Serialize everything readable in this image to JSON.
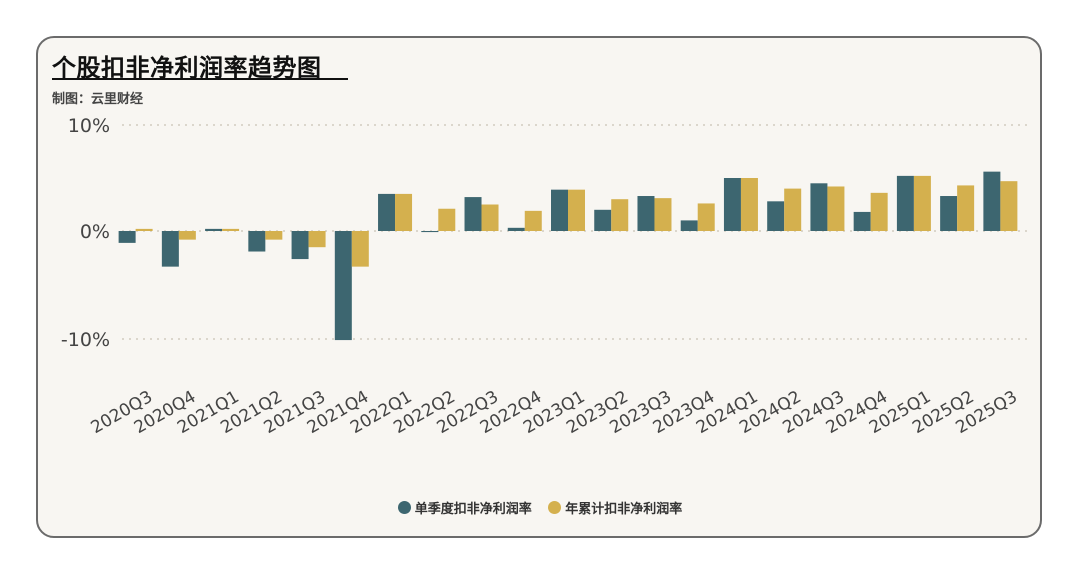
{
  "title": "个股扣非净利润率趋势图",
  "subtitle": "制图：云里财经",
  "colors": {
    "quarterly": "#3d6670",
    "annual": "#d4b04e",
    "grid": "#c9c2b6",
    "axis_text": "#444444"
  },
  "chart_data": {
    "type": "bar",
    "categories": [
      "2020Q3",
      "2020Q4",
      "2021Q1",
      "2021Q2",
      "2021Q3",
      "2021Q4",
      "2022Q1",
      "2022Q2",
      "2022Q3",
      "2022Q4",
      "2023Q1",
      "2023Q2",
      "2023Q3",
      "2023Q4",
      "2024Q1",
      "2024Q2",
      "2024Q3",
      "2024Q4",
      "2025Q1",
      "2025Q2",
      "2025Q3"
    ],
    "series": [
      {
        "name": "单季度扣非净利润率",
        "color": "#3d6670",
        "values": [
          -1.1,
          -3.3,
          0.2,
          -1.9,
          -2.6,
          -10.1,
          3.5,
          -0.1,
          3.2,
          0.3,
          3.9,
          2.0,
          3.3,
          1.0,
          5.0,
          2.8,
          4.5,
          1.8,
          5.2,
          3.3,
          5.6
        ]
      },
      {
        "name": "年累计扣非净利润率",
        "color": "#d4b04e",
        "values": [
          0.2,
          -0.8,
          0.2,
          -0.8,
          -1.5,
          -3.3,
          3.5,
          2.1,
          2.5,
          1.9,
          3.9,
          3.0,
          3.1,
          2.6,
          5.0,
          4.0,
          4.2,
          3.6,
          5.2,
          4.3,
          4.7
        ]
      }
    ],
    "ylim": [
      -10,
      10
    ],
    "yticks": [
      10,
      0,
      -10
    ],
    "ytick_labels": [
      "10%",
      "0%",
      "-10%"
    ],
    "grid": true,
    "legend": "bottom-center"
  }
}
